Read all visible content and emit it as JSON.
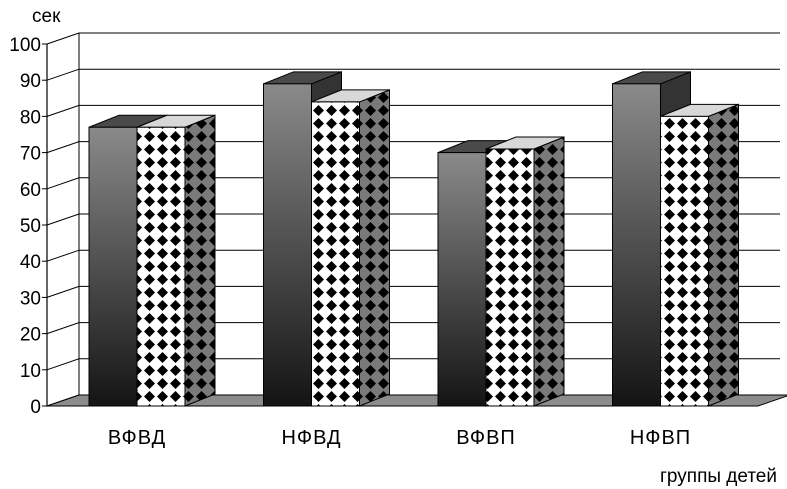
{
  "chart_data": {
    "type": "bar",
    "style": "3d-clustered-column",
    "title": "",
    "ylabel": "сек",
    "xlabel": "группы детей",
    "categories": [
      "ВФВД",
      "НФВД",
      "ВФВП",
      "НФВП"
    ],
    "series": [
      {
        "values": [
          77,
          89,
          70,
          89
        ],
        "fill": "dark-gradient"
      },
      {
        "values": [
          77,
          84,
          71,
          80
        ],
        "fill": "dotted-pattern"
      }
    ],
    "ylim": [
      0,
      100
    ],
    "yticks": [
      "0",
      "10",
      "20",
      "30",
      "40",
      "50",
      "60",
      "70",
      "80",
      "90",
      "100"
    ],
    "grid": true,
    "legend": "none"
  }
}
